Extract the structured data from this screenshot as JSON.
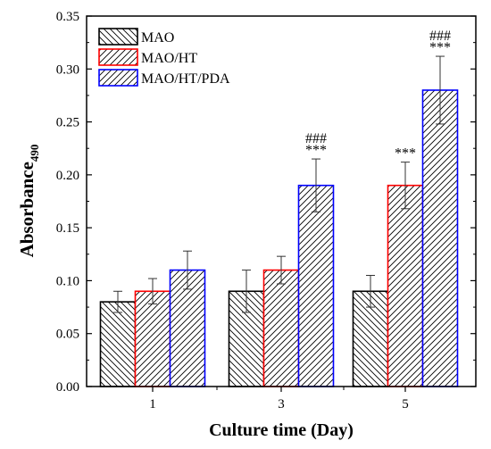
{
  "chart_data": {
    "type": "bar",
    "categories": [
      "1",
      "3",
      "5"
    ],
    "series": [
      {
        "name": "MAO",
        "values": [
          0.08,
          0.09,
          0.09
        ],
        "errors": [
          0.01,
          0.02,
          0.015
        ],
        "color": "#000000",
        "hatch": "left"
      },
      {
        "name": "MAO/HT",
        "values": [
          0.09,
          0.11,
          0.19
        ],
        "errors": [
          0.012,
          0.013,
          0.022
        ],
        "color": "#ff0000",
        "hatch": "right"
      },
      {
        "name": "MAO/HT/PDA",
        "values": [
          0.11,
          0.19,
          0.28
        ],
        "errors": [
          0.018,
          0.025,
          0.032
        ],
        "color": "#0000ff",
        "hatch": "right"
      }
    ],
    "annotations": [
      {
        "category": "3",
        "series": "MAO/HT/PDA",
        "lines": [
          "###",
          "***"
        ]
      },
      {
        "category": "5",
        "series": "MAO/HT",
        "lines": [
          "***"
        ]
      },
      {
        "category": "5",
        "series": "MAO/HT/PDA",
        "lines": [
          "###",
          "***"
        ]
      }
    ],
    "xlabel": "Culture time (Day)",
    "ylabel_main": "Absorbance",
    "ylabel_sub": "490",
    "ylim": [
      0.0,
      0.35
    ],
    "yticks": [
      "0.00",
      "0.05",
      "0.10",
      "0.15",
      "0.20",
      "0.25",
      "0.30",
      "0.35"
    ],
    "legend_position": "top-left",
    "grid": false
  }
}
